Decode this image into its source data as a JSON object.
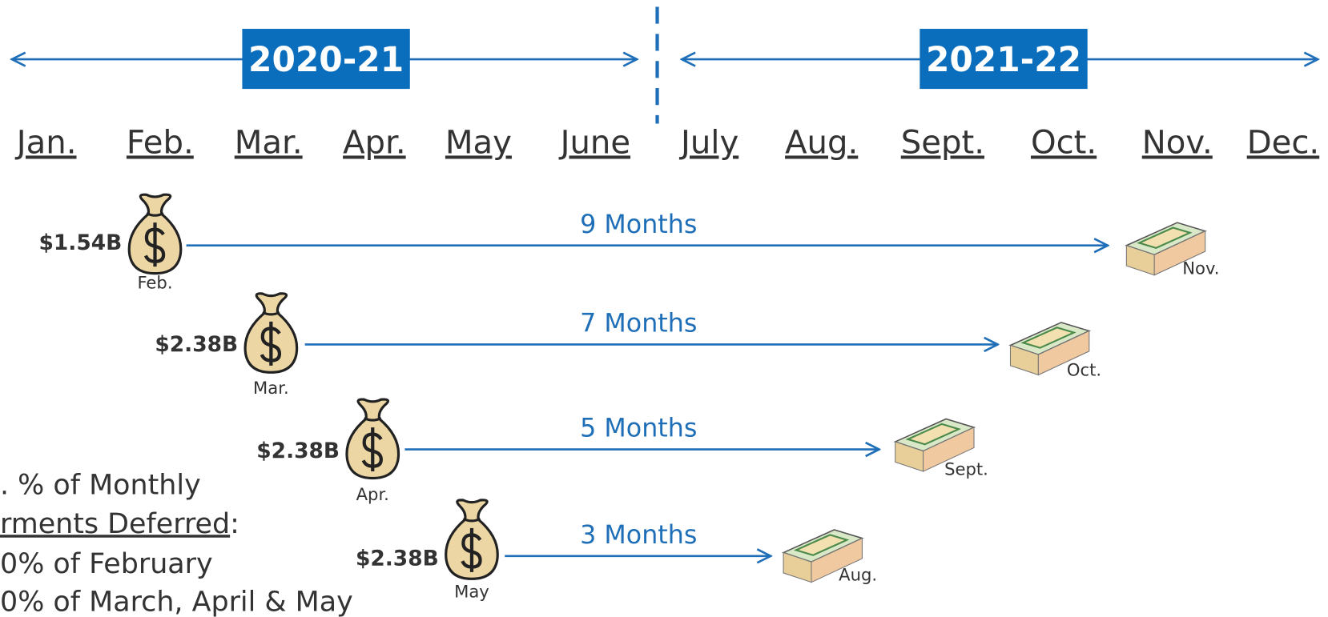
{
  "periods": [
    {
      "label": "2020-21"
    },
    {
      "label": "2021-22"
    }
  ],
  "months": [
    "Jan.",
    "Feb.",
    "Mar.",
    "Apr.",
    "May",
    "June",
    "July",
    "Aug.",
    "Sept.",
    "Oct.",
    "Nov.",
    "Dec."
  ],
  "deferrals": [
    {
      "amount": "$1.54B",
      "from": "Feb.",
      "duration": "9 Months",
      "to": "Nov."
    },
    {
      "amount": "$2.38B",
      "from": "Mar.",
      "duration": "7 Months",
      "to": "Oct."
    },
    {
      "amount": "$2.38B",
      "from": "Apr.",
      "duration": "5 Months",
      "to": "Sept."
    },
    {
      "amount": "$2.38B",
      "from": "May",
      "duration": "3 Months",
      "to": "Aug."
    }
  ],
  "note": {
    "line1": ". % of Monthly",
    "line2_underlined": "rments Deferred",
    "line2_rest": ":",
    "items": [
      "0% of February",
      "0% of March, April & May"
    ]
  }
}
